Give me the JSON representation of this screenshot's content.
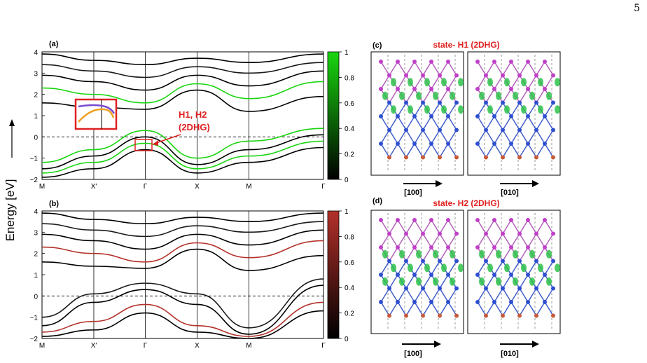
{
  "page_number": "5",
  "y_axis_label": "Energy [eV]",
  "panels": {
    "a": {
      "label": "(a)",
      "colorbar_color": "#19d60f"
    },
    "b": {
      "label": "(b)",
      "colorbar_color": "#b3312a"
    },
    "c": {
      "label": "(c)",
      "title": "state- H1 (2DHG)",
      "dir_left": "[100]",
      "dir_right": "[010]"
    },
    "d": {
      "label": "(d)",
      "title": "state- H2 (2DHG)",
      "dir_left": "[100]",
      "dir_right": "[010]"
    }
  },
  "annotation": {
    "line1": "H1, H2",
    "line2": "(2DHG)"
  },
  "k_labels": [
    "M",
    "X′",
    "Γ",
    "X",
    "M",
    "Γ"
  ],
  "energy_ticks": [
    "4",
    "3",
    "2",
    "1",
    "0",
    "−1",
    "−2"
  ],
  "colorbar_ticks": [
    "1",
    "0.8",
    "0.6",
    "0.4",
    "0.2",
    "0"
  ],
  "chart_data": [
    {
      "type": "line",
      "title": "",
      "ylabel": "Energy [eV]",
      "categories": [
        "M",
        "X′",
        "Γ",
        "X",
        "M",
        "Γ"
      ],
      "ylim": [
        -2,
        4
      ],
      "fermi_level": 0,
      "colorbar": {
        "range": [
          0,
          1
        ],
        "colors": [
          "#000000",
          "#19d60f"
        ]
      },
      "series": [
        {
          "values": [
            1.6,
            1.4,
            1.3,
            2.2,
            1.2,
            1.9
          ]
        },
        {
          "values": [
            2.3,
            2.0,
            1.6,
            2.5,
            1.8,
            2.6
          ]
        },
        {
          "values": [
            2.9,
            2.6,
            2.2,
            2.9,
            2.4,
            3.1
          ]
        },
        {
          "values": [
            3.4,
            3.1,
            2.8,
            3.3,
            3.0,
            3.5
          ]
        },
        {
          "values": [
            3.9,
            3.6,
            3.4,
            3.7,
            3.5,
            3.9
          ]
        },
        {
          "values": [
            -1.2,
            -0.6,
            0.3,
            -1.0,
            -0.2,
            0.4
          ]
        },
        {
          "values": [
            -1.5,
            -0.9,
            0.0,
            -1.3,
            -0.6,
            0.1
          ]
        },
        {
          "values": [
            -1.7,
            -1.2,
            -0.3,
            -1.5,
            -0.9,
            -0.2
          ]
        },
        {
          "values": [
            -1.9,
            -1.5,
            -0.6,
            -1.7,
            -1.2,
            -0.5
          ]
        }
      ]
    },
    {
      "type": "line",
      "title": "",
      "ylabel": "Energy [eV]",
      "categories": [
        "M",
        "X′",
        "Γ",
        "X",
        "M",
        "Γ"
      ],
      "ylim": [
        -2,
        4
      ],
      "fermi_level": 0,
      "colorbar": {
        "range": [
          0,
          1
        ],
        "colors": [
          "#000000",
          "#b3312a"
        ]
      },
      "series": [
        {
          "values": [
            1.6,
            1.4,
            1.3,
            2.2,
            1.2,
            1.9
          ]
        },
        {
          "values": [
            2.3,
            2.0,
            1.6,
            2.5,
            1.8,
            2.6
          ]
        },
        {
          "values": [
            2.9,
            2.6,
            2.2,
            2.9,
            2.4,
            3.1
          ]
        },
        {
          "values": [
            3.4,
            3.1,
            2.8,
            3.3,
            3.0,
            3.5
          ]
        },
        {
          "values": [
            3.9,
            3.6,
            3.4,
            3.7,
            3.5,
            3.9
          ]
        },
        {
          "values": [
            -1.0,
            0.1,
            0.6,
            0.1,
            -1.5,
            0.8
          ]
        },
        {
          "values": [
            -1.4,
            -0.3,
            0.3,
            -0.4,
            -1.8,
            0.5
          ]
        },
        {
          "values": [
            -1.7,
            -1.2,
            -0.4,
            -1.4,
            -1.9,
            -0.3
          ]
        },
        {
          "values": [
            -1.9,
            -1.6,
            -0.8,
            -1.7,
            -2.0,
            -0.7
          ]
        }
      ]
    }
  ]
}
